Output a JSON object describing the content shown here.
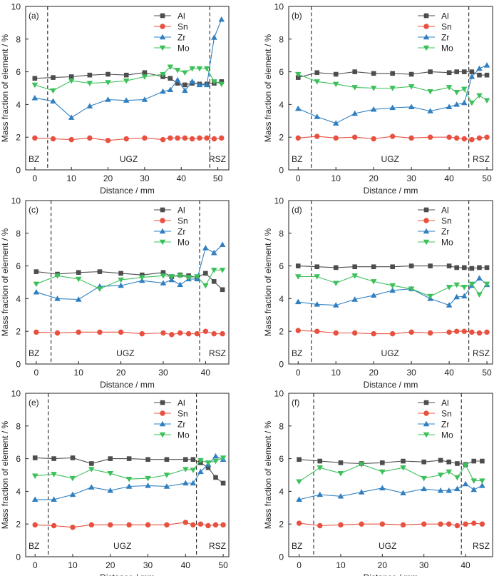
{
  "colors": {
    "Al": "#4d4d4d",
    "Sn": "#e8503f",
    "Zr": "#2f7fc1",
    "Mo": "#3cc05a"
  },
  "shared": {
    "xlabel": "Distance / mm",
    "ylabel": "Mass fraction of element / %",
    "yticks": [
      0,
      2,
      4,
      6,
      8,
      10
    ],
    "region_labels": [
      "BZ",
      "UGZ",
      "RSZ"
    ]
  },
  "chart_data": [
    {
      "panel": "(a)",
      "type": "line",
      "xlabel": "Distance / mm",
      "ylabel": "Mass fraction of element / %",
      "xlim": [
        -2.5,
        53
      ],
      "ylim": [
        0,
        10
      ],
      "xticks": [
        0,
        10,
        20,
        30,
        40,
        50
      ],
      "boundaries": [
        3.5,
        47.8
      ],
      "region_labels": [
        "BZ",
        "UGZ",
        "RSZ"
      ],
      "legend": "top-right",
      "series": [
        {
          "name": "Al",
          "x": [
            0,
            5,
            10,
            15,
            20,
            25,
            30,
            35,
            37,
            39,
            41,
            43,
            45,
            47,
            49,
            51
          ],
          "y": [
            5.6,
            5.65,
            5.7,
            5.8,
            5.85,
            5.8,
            5.95,
            5.7,
            5.6,
            5.3,
            5.2,
            5.3,
            5.25,
            5.25,
            5.3,
            5.4
          ]
        },
        {
          "name": "Sn",
          "x": [
            0,
            5,
            10,
            15,
            20,
            25,
            30,
            35,
            37,
            39,
            41,
            43,
            45,
            47,
            49,
            51
          ],
          "y": [
            1.95,
            1.9,
            1.85,
            1.95,
            1.8,
            1.9,
            1.95,
            1.85,
            1.95,
            1.95,
            1.95,
            1.9,
            1.95,
            1.95,
            1.9,
            1.95
          ]
        },
        {
          "name": "Zr",
          "x": [
            0,
            5,
            10,
            15,
            20,
            25,
            30,
            35,
            37,
            39,
            41,
            43,
            45,
            47,
            49,
            51
          ],
          "y": [
            4.4,
            4.2,
            3.2,
            3.9,
            4.3,
            4.25,
            4.3,
            4.8,
            4.9,
            5.5,
            4.85,
            5.4,
            5.2,
            5.2,
            8.1,
            9.2
          ]
        },
        {
          "name": "Mo",
          "x": [
            0,
            5,
            10,
            15,
            20,
            25,
            30,
            35,
            37,
            39,
            41,
            43,
            45,
            47,
            49,
            51
          ],
          "y": [
            5.2,
            4.85,
            5.45,
            5.3,
            5.35,
            5.45,
            5.7,
            5.85,
            6.3,
            6.1,
            5.95,
            6.2,
            6.2,
            6.2,
            5.4,
            5.25
          ]
        }
      ]
    },
    {
      "panel": "(b)",
      "type": "line",
      "xlabel": "Distance / mm",
      "ylabel": "Mass fraction of element / %",
      "xlim": [
        -2.5,
        51.5
      ],
      "ylim": [
        0,
        10
      ],
      "xticks": [
        0,
        10,
        20,
        30,
        40,
        50
      ],
      "boundaries": [
        3.5,
        45.2
      ],
      "region_labels": [
        "BZ",
        "UGZ",
        "RSZ"
      ],
      "legend": "top-right",
      "series": [
        {
          "name": "Al",
          "x": [
            0,
            5,
            10,
            15,
            20,
            25,
            30,
            35,
            40,
            42,
            44,
            46,
            48,
            50
          ],
          "y": [
            5.65,
            5.95,
            5.85,
            6.0,
            5.9,
            5.9,
            5.85,
            6.0,
            5.95,
            6.0,
            6.0,
            6.0,
            5.8,
            5.8
          ]
        },
        {
          "name": "Sn",
          "x": [
            0,
            5,
            10,
            15,
            20,
            25,
            30,
            35,
            40,
            42,
            44,
            46,
            48,
            50
          ],
          "y": [
            1.95,
            2.05,
            1.95,
            2.0,
            1.9,
            2.05,
            1.95,
            2.0,
            2.0,
            1.95,
            1.9,
            1.85,
            1.95,
            2.0
          ]
        },
        {
          "name": "Zr",
          "x": [
            0,
            5,
            10,
            15,
            20,
            25,
            30,
            35,
            40,
            42,
            44,
            46,
            48,
            50
          ],
          "y": [
            3.75,
            3.25,
            2.85,
            3.45,
            3.7,
            3.8,
            3.85,
            3.6,
            3.85,
            4.0,
            4.1,
            5.7,
            6.2,
            6.4
          ]
        },
        {
          "name": "Mo",
          "x": [
            0,
            5,
            10,
            15,
            20,
            25,
            30,
            35,
            40,
            42,
            44,
            46,
            48,
            50
          ],
          "y": [
            5.85,
            5.4,
            5.25,
            5.05,
            5.0,
            5.0,
            5.1,
            4.8,
            5.05,
            4.75,
            4.95,
            4.1,
            4.55,
            4.25
          ]
        }
      ]
    },
    {
      "panel": "(c)",
      "type": "line",
      "xlabel": "Distance / mm",
      "ylabel": "Mass fraction of element / %",
      "xlim": [
        -2.5,
        45.5
      ],
      "ylim": [
        0,
        10
      ],
      "xticks": [
        0,
        10,
        20,
        30,
        40
      ],
      "boundaries": [
        3.5,
        38.6
      ],
      "region_labels": [
        "BZ",
        "UGZ",
        "RSZ"
      ],
      "legend": "top-right",
      "series": [
        {
          "name": "Al",
          "x": [
            0,
            5,
            10,
            15,
            20,
            25,
            30,
            32,
            34,
            36,
            38,
            40,
            42,
            44
          ],
          "y": [
            5.65,
            5.5,
            5.6,
            5.65,
            5.55,
            5.45,
            5.6,
            5.35,
            5.45,
            5.4,
            5.3,
            5.55,
            5.05,
            4.55
          ]
        },
        {
          "name": "Sn",
          "x": [
            0,
            5,
            10,
            15,
            20,
            25,
            30,
            32,
            34,
            36,
            38,
            40,
            42,
            44
          ],
          "y": [
            1.95,
            1.9,
            1.95,
            1.95,
            1.95,
            1.85,
            1.9,
            1.8,
            1.9,
            1.85,
            1.85,
            2.0,
            1.85,
            1.85
          ]
        },
        {
          "name": "Zr",
          "x": [
            0,
            5,
            10,
            15,
            20,
            25,
            30,
            32,
            34,
            36,
            38,
            40,
            42,
            44
          ],
          "y": [
            4.4,
            4.0,
            3.95,
            4.75,
            4.8,
            5.1,
            4.95,
            5.15,
            4.85,
            5.2,
            5.2,
            7.1,
            6.8,
            7.3
          ]
        },
        {
          "name": "Mo",
          "x": [
            0,
            5,
            10,
            15,
            20,
            25,
            30,
            32,
            34,
            36,
            38,
            40,
            42,
            44
          ],
          "y": [
            4.9,
            5.4,
            5.2,
            4.6,
            5.15,
            5.3,
            5.4,
            5.35,
            5.4,
            5.3,
            5.35,
            4.8,
            5.75,
            5.75
          ]
        }
      ]
    },
    {
      "panel": "(d)",
      "type": "line",
      "xlabel": "Distance / mm",
      "ylabel": "Mass fraction of element / %",
      "xlim": [
        -2.5,
        51.5
      ],
      "ylim": [
        0,
        10
      ],
      "xticks": [
        0,
        10,
        20,
        30,
        40,
        50
      ],
      "boundaries": [
        3.5,
        45.2
      ],
      "region_labels": [
        "BZ",
        "UGZ",
        "RSZ"
      ],
      "legend": "top-right",
      "series": [
        {
          "name": "Al",
          "x": [
            0,
            5,
            10,
            15,
            20,
            25,
            30,
            35,
            40,
            42,
            44,
            46,
            48,
            50
          ],
          "y": [
            6.0,
            5.95,
            5.9,
            5.95,
            5.95,
            5.95,
            6.0,
            6.0,
            6.0,
            5.9,
            5.9,
            5.85,
            5.9,
            5.9
          ]
        },
        {
          "name": "Sn",
          "x": [
            0,
            5,
            10,
            15,
            20,
            25,
            30,
            35,
            40,
            42,
            44,
            46,
            48,
            50
          ],
          "y": [
            2.05,
            2.0,
            1.9,
            1.9,
            1.85,
            1.85,
            1.95,
            1.9,
            1.95,
            2.0,
            2.0,
            1.95,
            1.9,
            1.95
          ]
        },
        {
          "name": "Zr",
          "x": [
            0,
            5,
            10,
            15,
            20,
            25,
            30,
            35,
            40,
            42,
            44,
            46,
            48,
            50
          ],
          "y": [
            3.8,
            3.65,
            3.6,
            3.95,
            4.2,
            4.5,
            4.6,
            4.0,
            3.6,
            4.1,
            4.15,
            4.8,
            5.25,
            4.85
          ]
        },
        {
          "name": "Mo",
          "x": [
            0,
            5,
            10,
            15,
            20,
            25,
            30,
            35,
            40,
            42,
            44,
            46,
            48,
            50
          ],
          "y": [
            5.35,
            5.35,
            4.95,
            5.4,
            5.05,
            4.8,
            4.6,
            4.15,
            4.7,
            4.85,
            4.7,
            4.9,
            4.25,
            4.9
          ]
        }
      ]
    },
    {
      "panel": "(e)",
      "type": "line",
      "xlabel": "Distance / mm",
      "ylabel": "Mass fraction of element / %",
      "xlim": [
        -2.5,
        51.5
      ],
      "ylim": [
        0,
        10
      ],
      "xticks": [
        0,
        10,
        20,
        30,
        40,
        50
      ],
      "boundaries": [
        3.5,
        42.9
      ],
      "region_labels": [
        "BZ",
        "UGZ",
        "RSZ"
      ],
      "legend": "top-right",
      "series": [
        {
          "name": "Al",
          "x": [
            0,
            5,
            10,
            15,
            20,
            25,
            30,
            35,
            40,
            42,
            44,
            46,
            48,
            50
          ],
          "y": [
            6.05,
            6.0,
            6.05,
            5.7,
            6.0,
            6.0,
            5.95,
            5.95,
            5.95,
            5.95,
            5.75,
            5.45,
            4.85,
            4.5
          ]
        },
        {
          "name": "Sn",
          "x": [
            0,
            5,
            10,
            15,
            20,
            25,
            30,
            35,
            40,
            42,
            44,
            46,
            48,
            50
          ],
          "y": [
            1.95,
            1.9,
            1.8,
            1.95,
            1.95,
            1.95,
            1.95,
            1.95,
            2.1,
            1.95,
            2.0,
            1.9,
            1.95,
            1.95
          ]
        },
        {
          "name": "Zr",
          "x": [
            0,
            5,
            10,
            15,
            20,
            25,
            30,
            35,
            40,
            42,
            44,
            46,
            48,
            50
          ],
          "y": [
            3.5,
            3.5,
            3.8,
            4.25,
            4.05,
            4.3,
            4.35,
            4.3,
            4.5,
            4.5,
            5.2,
            5.65,
            6.15,
            5.95
          ]
        },
        {
          "name": "Mo",
          "x": [
            0,
            5,
            10,
            15,
            20,
            25,
            30,
            35,
            40,
            42,
            44,
            46,
            48,
            50
          ],
          "y": [
            4.95,
            5.05,
            4.8,
            5.35,
            5.1,
            4.75,
            4.8,
            5.0,
            5.35,
            5.3,
            5.9,
            5.75,
            5.85,
            6.05
          ]
        }
      ]
    },
    {
      "panel": "(f)",
      "type": "line",
      "xlabel": "Distance / mm",
      "ylabel": "Mass fraction of element / %",
      "xlim": [
        -2.5,
        46.5
      ],
      "ylim": [
        0,
        10
      ],
      "xticks": [
        0,
        10,
        20,
        30,
        40
      ],
      "boundaries": [
        3.5,
        39.0
      ],
      "region_labels": [
        "BZ",
        "UGZ",
        "RSZ"
      ],
      "legend": "top-right",
      "series": [
        {
          "name": "Al",
          "x": [
            0,
            5,
            10,
            15,
            20,
            25,
            30,
            34,
            36,
            38,
            40,
            42,
            44
          ],
          "y": [
            5.95,
            5.85,
            5.75,
            5.7,
            5.75,
            5.85,
            5.8,
            5.9,
            5.8,
            5.7,
            5.65,
            5.85,
            5.85
          ]
        },
        {
          "name": "Sn",
          "x": [
            0,
            5,
            10,
            15,
            20,
            25,
            30,
            34,
            36,
            38,
            40,
            42,
            44
          ],
          "y": [
            2.05,
            1.9,
            1.95,
            2.0,
            2.0,
            1.95,
            2.0,
            2.0,
            2.0,
            1.9,
            2.0,
            2.05,
            2.0
          ]
        },
        {
          "name": "Zr",
          "x": [
            0,
            5,
            10,
            15,
            20,
            25,
            30,
            34,
            36,
            38,
            40,
            42,
            44
          ],
          "y": [
            3.5,
            3.8,
            3.7,
            3.95,
            4.2,
            3.9,
            4.15,
            4.05,
            4.05,
            4.15,
            4.45,
            4.1,
            4.35
          ]
        },
        {
          "name": "Mo",
          "x": [
            0,
            5,
            10,
            15,
            20,
            25,
            30,
            34,
            36,
            38,
            40,
            42,
            44
          ],
          "y": [
            4.6,
            5.45,
            5.1,
            5.65,
            5.2,
            5.45,
            4.8,
            5.0,
            5.2,
            4.85,
            5.6,
            4.65,
            4.65
          ]
        }
      ]
    }
  ]
}
